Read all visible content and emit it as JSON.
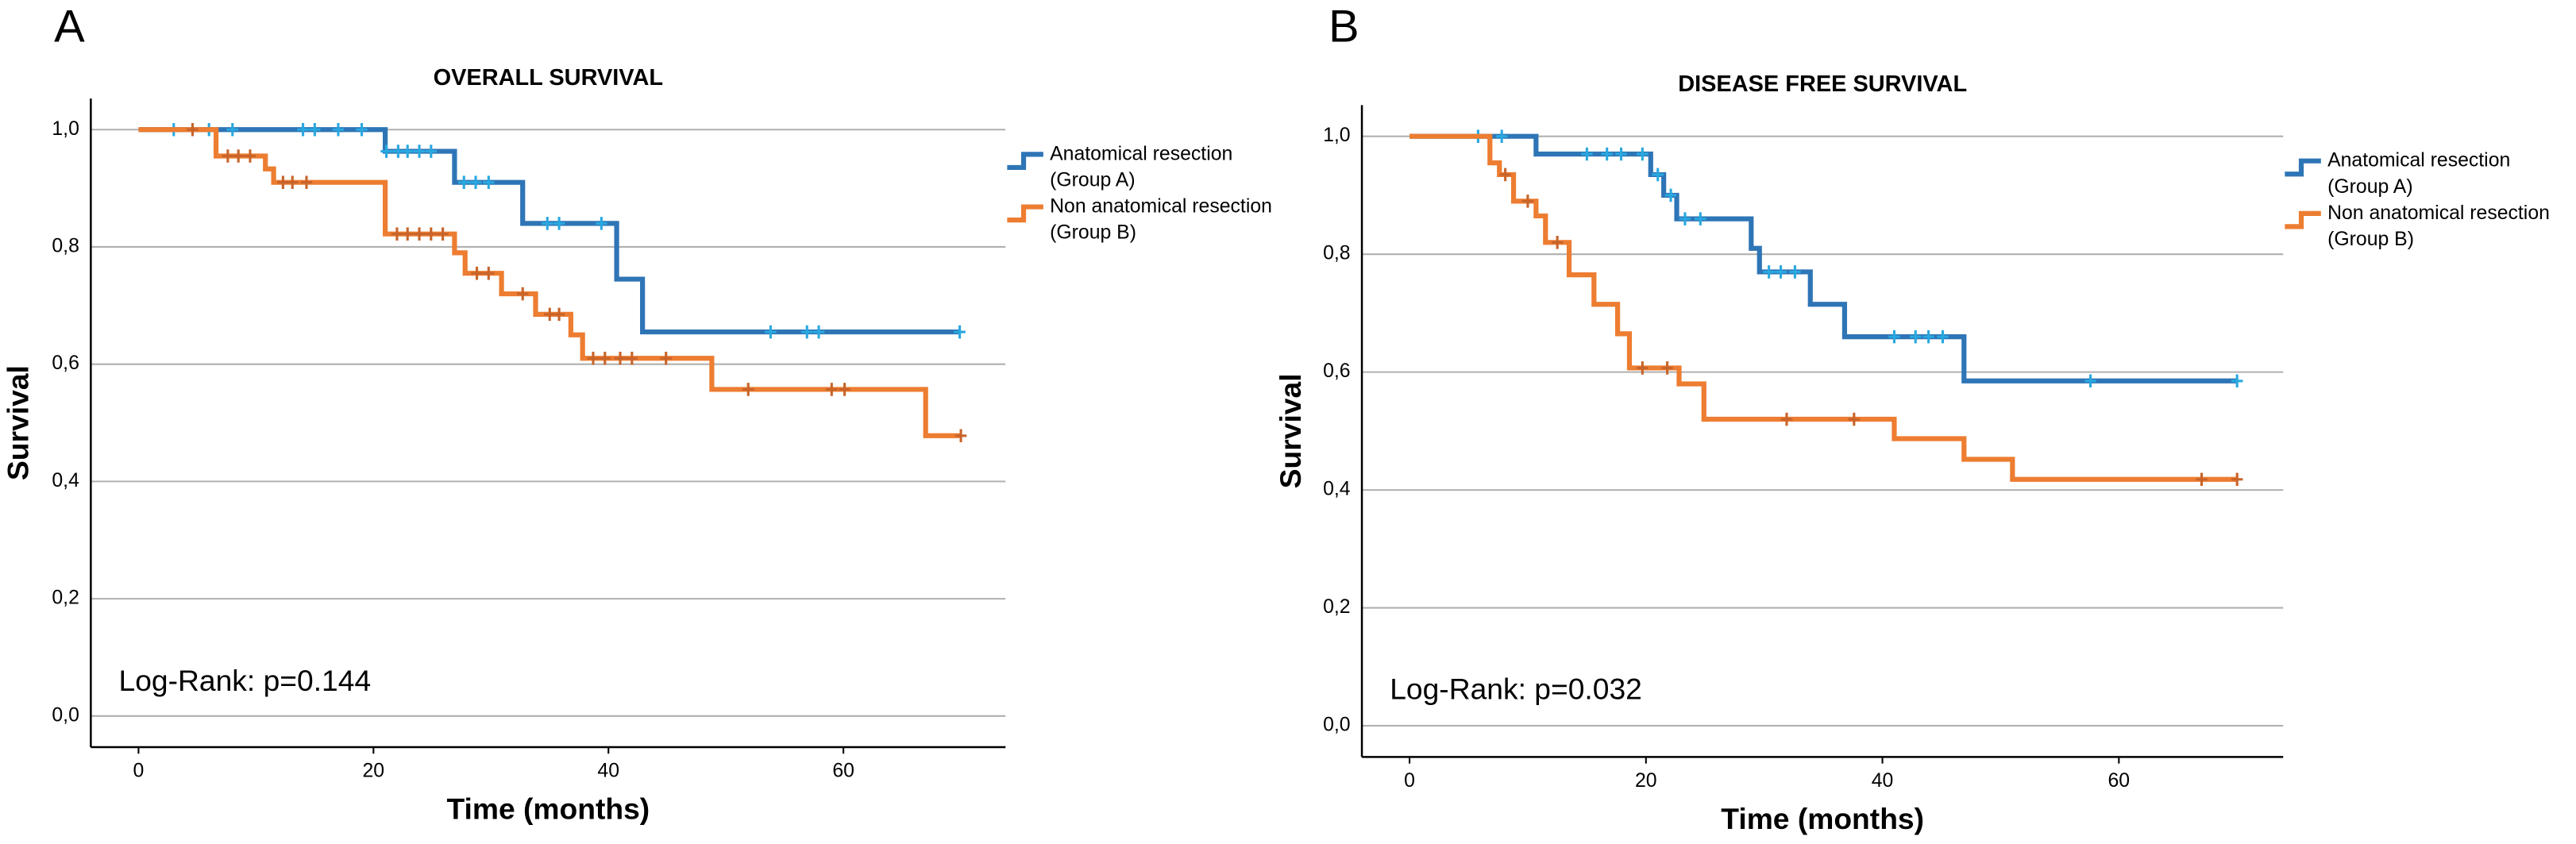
{
  "chart_data": [
    {
      "type": "step",
      "panel": "A",
      "title": "OVERALL SURVIVAL",
      "xlabel": "Time (months)",
      "ylabel": "Survival",
      "annotation": "Log-Rank: p=0.144",
      "xlim": [
        -4.06,
        73.8
      ],
      "ylim": [
        -0.053,
        1.053
      ],
      "xticks": [
        0,
        20,
        40,
        60
      ],
      "yticks": [
        {
          "value": 0,
          "label": "0,0"
        },
        {
          "value": 0.2,
          "label": "0,2"
        },
        {
          "value": 0.4,
          "label": "0,4"
        },
        {
          "value": 0.6,
          "label": "0,6"
        },
        {
          "value": 0.8,
          "label": "0,8"
        },
        {
          "value": 1,
          "label": "1,0"
        }
      ],
      "grid": true,
      "series": [
        {
          "name": "Anatomical resection\n(Group A)",
          "color": "#2e75b6",
          "censor_color": "#29a8e0",
          "x": [
            0,
            21,
            26.9,
            32.7,
            40.7,
            42.9,
            70
          ],
          "values": [
            1,
            0.963,
            0.91,
            0.84,
            0.745,
            0.655,
            0.655
          ],
          "censor_x": [
            3,
            6,
            8,
            14,
            15,
            17,
            19,
            21.1,
            22.1,
            22.9,
            23.9,
            24.9,
            27.7,
            28.7,
            29.8,
            34.8,
            35.8,
            39.4,
            53.8,
            56.9,
            57.9,
            69.9
          ],
          "censor_values": [
            1,
            1,
            1,
            1,
            1,
            1,
            1,
            0.963,
            0.963,
            0.963,
            0.963,
            0.963,
            0.91,
            0.91,
            0.91,
            0.84,
            0.84,
            0.84,
            0.655,
            0.655,
            0.655,
            0.655
          ]
        },
        {
          "name": "Non anatomical resection\n(Group B)",
          "color": "#ed7d31",
          "censor_color": "#c8642a",
          "x": [
            0,
            6.6,
            10.8,
            11.5,
            21,
            26.9,
            27.8,
            30.9,
            33.8,
            36.8,
            37.8,
            48.8,
            67,
            70
          ],
          "values": [
            1,
            0.955,
            0.933,
            0.91,
            0.822,
            0.79,
            0.755,
            0.72,
            0.685,
            0.65,
            0.61,
            0.557,
            0.478,
            0.478
          ],
          "censor_x": [
            4.6,
            7.6,
            8.5,
            9.5,
            12.3,
            13.1,
            14.3,
            22,
            22.9,
            23.9,
            24.9,
            25.9,
            28.8,
            29.8,
            32.7,
            35,
            35.8,
            38.7,
            39.7,
            41,
            42,
            44.9,
            51.9,
            59,
            60.1,
            70
          ],
          "censor_values": [
            1,
            0.955,
            0.955,
            0.955,
            0.91,
            0.91,
            0.91,
            0.822,
            0.822,
            0.822,
            0.822,
            0.822,
            0.755,
            0.755,
            0.72,
            0.685,
            0.685,
            0.61,
            0.61,
            0.61,
            0.61,
            0.61,
            0.557,
            0.557,
            0.557,
            0.478
          ]
        }
      ]
    },
    {
      "type": "step",
      "panel": "B",
      "title": "DISEASE FREE SURVIVAL",
      "xlabel": "Time (months)",
      "ylabel": "Survival",
      "annotation": "Log-Rank: p=0.032",
      "xlim": [
        -4.03,
        73.9
      ],
      "ylim": [
        -0.053,
        1.053
      ],
      "xticks": [
        0,
        20,
        40,
        60
      ],
      "yticks": [
        {
          "value": 0,
          "label": "0,0"
        },
        {
          "value": 0.2,
          "label": "0,2"
        },
        {
          "value": 0.4,
          "label": "0,4"
        },
        {
          "value": 0.6,
          "label": "0,6"
        },
        {
          "value": 0.8,
          "label": "0,8"
        },
        {
          "value": 1,
          "label": "1,0"
        }
      ],
      "grid": true,
      "series": [
        {
          "name": "Anatomical resection\n(Group A)",
          "color": "#2e75b6",
          "censor_color": "#29a8e0",
          "x": [
            0,
            10.7,
            20.4,
            21.5,
            22.6,
            28.9,
            29.6,
            33.9,
            36.8,
            46.9,
            70
          ],
          "values": [
            1,
            0.97,
            0.935,
            0.9,
            0.86,
            0.81,
            0.77,
            0.715,
            0.66,
            0.585,
            0.585
          ],
          "censor_x": [
            5.8,
            7.8,
            15,
            16.7,
            17.9,
            19.7,
            21,
            22.1,
            23.3,
            24.6,
            30.4,
            31.4,
            32.6,
            41,
            42.8,
            43.9,
            45.1,
            57.6,
            70
          ],
          "censor_values": [
            1,
            1,
            0.97,
            0.97,
            0.97,
            0.97,
            0.935,
            0.9,
            0.86,
            0.86,
            0.77,
            0.77,
            0.77,
            0.66,
            0.66,
            0.66,
            0.66,
            0.585,
            0.585
          ]
        },
        {
          "name": "Non anatomical resection\n(Group B)",
          "color": "#ed7d31",
          "censor_color": "#c8642a",
          "x": [
            0,
            6.8,
            7.6,
            8.8,
            10.7,
            11.5,
            13.5,
            15.6,
            17.6,
            18.6,
            22.8,
            24.9,
            41,
            46.9,
            51,
            70
          ],
          "values": [
            1,
            0.955,
            0.935,
            0.89,
            0.865,
            0.82,
            0.765,
            0.715,
            0.665,
            0.607,
            0.58,
            0.52,
            0.487,
            0.452,
            0.418,
            0.418
          ],
          "censor_x": [
            8.1,
            10,
            12.5,
            19.7,
            21.8,
            31.9,
            37.6,
            67,
            70
          ],
          "censor_values": [
            0.935,
            0.89,
            0.82,
            0.607,
            0.607,
            0.52,
            0.52,
            0.418,
            0.418
          ]
        }
      ]
    }
  ]
}
